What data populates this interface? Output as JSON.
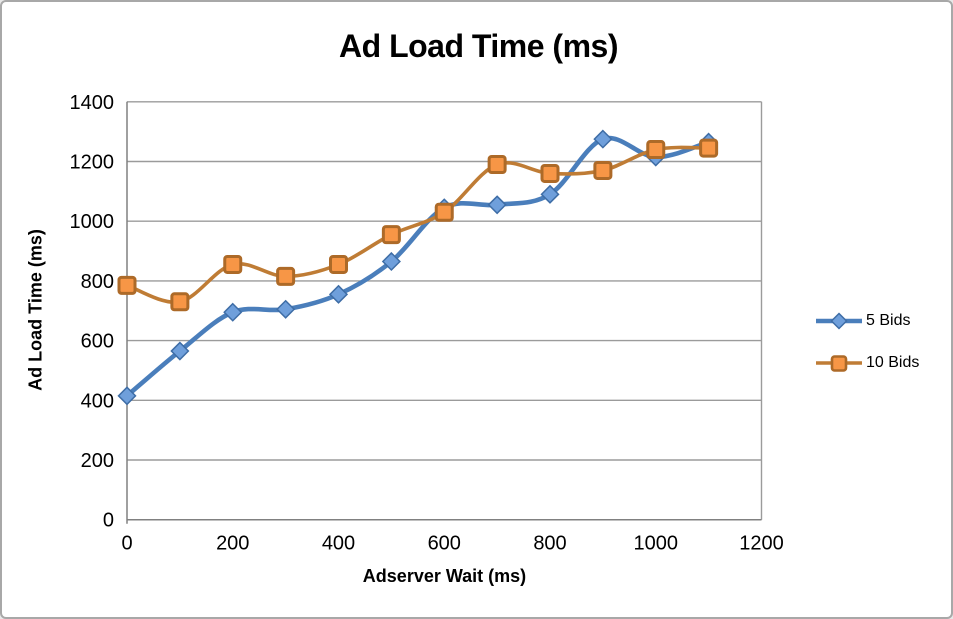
{
  "chart_data": {
    "type": "line",
    "title": "Ad Load Time (ms)",
    "xlabel": "Adserver Wait (ms)",
    "ylabel": "Ad Load Time (ms)",
    "x": [
      0,
      100,
      200,
      300,
      400,
      500,
      600,
      700,
      800,
      900,
      1000,
      1100
    ],
    "series": [
      {
        "name": "5 Bids",
        "marker": "diamond",
        "line_color": "#4a7ebb",
        "marker_fill": "#6f9fdb",
        "marker_stroke": "#3e6da6",
        "values": [
          415,
          565,
          695,
          705,
          755,
          865,
          1045,
          1055,
          1090,
          1275,
          1215,
          1265
        ]
      },
      {
        "name": "10 Bids",
        "marker": "square",
        "line_color": "#bf7c35",
        "marker_fill": "#f79646",
        "marker_stroke": "#ad6a28",
        "values": [
          785,
          730,
          855,
          815,
          855,
          955,
          1030,
          1190,
          1160,
          1170,
          1240,
          1245
        ]
      }
    ],
    "xlim": [
      0,
      1200
    ],
    "ylim": [
      0,
      1400
    ],
    "x_ticks": [
      0,
      200,
      400,
      600,
      800,
      1000,
      1200
    ],
    "y_ticks": [
      0,
      200,
      400,
      600,
      800,
      1000,
      1200,
      1400
    ],
    "grid": true,
    "smoothed": true,
    "legend_position": "right",
    "gridline_color": "#9b9b9b",
    "axis_color": "#808080",
    "tick_label_color": "#000000"
  }
}
